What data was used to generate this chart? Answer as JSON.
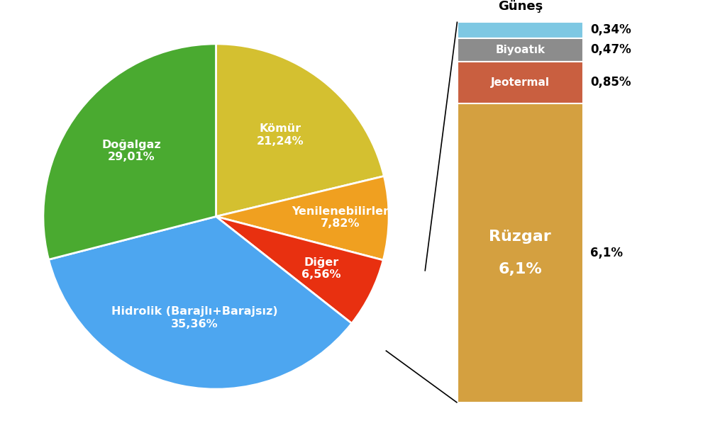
{
  "pie_values": [
    21.24,
    7.82,
    6.56,
    35.36,
    29.01
  ],
  "pie_colors": [
    "#d4c030",
    "#f0a020",
    "#e83010",
    "#4da6f0",
    "#4aaa30"
  ],
  "pie_labels": [
    "Kömür\n21,24%",
    "Yenilenebilirler\n7,82%",
    "Diğer\n6,56%",
    "Hidrolik (Barajlı+Barajsız)\n35,36%",
    "Doğalgaz\n29,01%"
  ],
  "pie_label_radii": [
    0.6,
    0.72,
    0.68,
    0.6,
    0.62
  ],
  "bar_segments": [
    {
      "label": "Güneş",
      "value": 0.34,
      "color": "#7ec8e3",
      "text_color": "black",
      "pct": "0,34%"
    },
    {
      "label": "Biyoatık",
      "value": 0.47,
      "color": "#8c8c8c",
      "text_color": "white",
      "pct": "0,47%"
    },
    {
      "label": "Jeotermal",
      "value": 0.85,
      "color": "#c95f40",
      "text_color": "white",
      "pct": "0,85%"
    },
    {
      "label": "Rüzgar",
      "value": 6.1,
      "color": "#d4a040",
      "text_color": "white",
      "pct": "6,1%"
    }
  ],
  "background_color": "#ffffff",
  "pie_startangle": 90,
  "line_color": "#000000"
}
